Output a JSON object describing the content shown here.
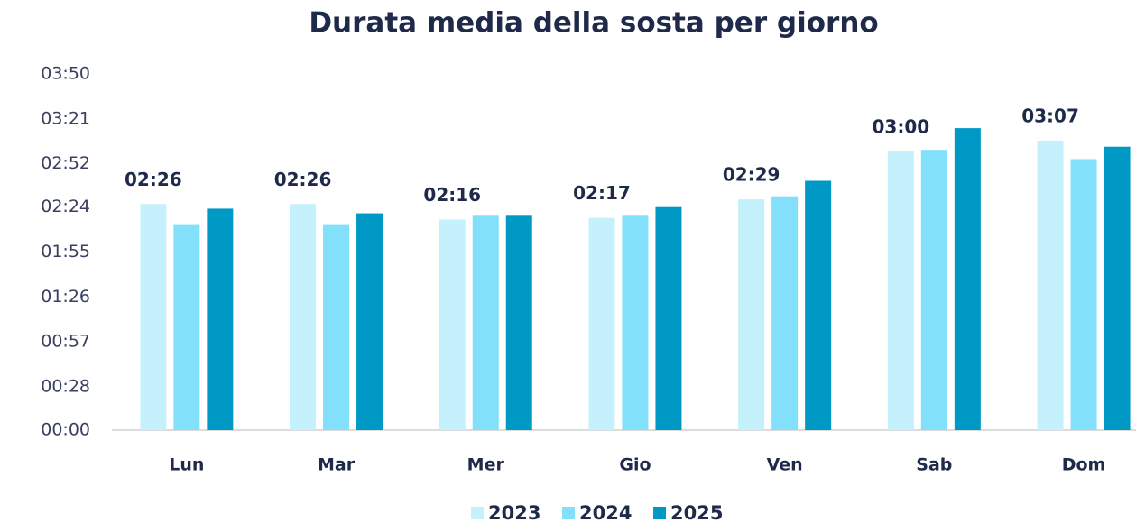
{
  "chart_data": {
    "type": "bar",
    "title": "Durata media della sosta per giorno",
    "categories": [
      "Lun",
      "Mar",
      "Mer",
      "Gio",
      "Ven",
      "Sab",
      "Dom"
    ],
    "series": [
      {
        "name": "2023",
        "color": "#c4f1fc",
        "values": [
          146,
          146,
          136,
          137,
          149,
          180,
          187
        ],
        "value_labels": [
          "02:26",
          "02:26",
          "02:16",
          "02:17",
          "02:29",
          "03:00",
          "03:07"
        ]
      },
      {
        "name": "2024",
        "color": "#82e0fb",
        "values": [
          133,
          133,
          139,
          139,
          151,
          181,
          175
        ]
      },
      {
        "name": "2025",
        "color": "#0099c6",
        "values": [
          143,
          140,
          139,
          144,
          161,
          195,
          183
        ]
      }
    ],
    "ylim": [
      0,
      230
    ],
    "yticks": [
      {
        "value": 0,
        "label": "00:00"
      },
      {
        "value": 28,
        "label": "00:28"
      },
      {
        "value": 57,
        "label": "00:57"
      },
      {
        "value": 86,
        "label": "01:26"
      },
      {
        "value": 115,
        "label": "01:55"
      },
      {
        "value": 144,
        "label": "02:24"
      },
      {
        "value": 172,
        "label": "02:52"
      },
      {
        "value": 201,
        "label": "03:21"
      },
      {
        "value": 230,
        "label": "03:50"
      }
    ],
    "grid": false
  }
}
